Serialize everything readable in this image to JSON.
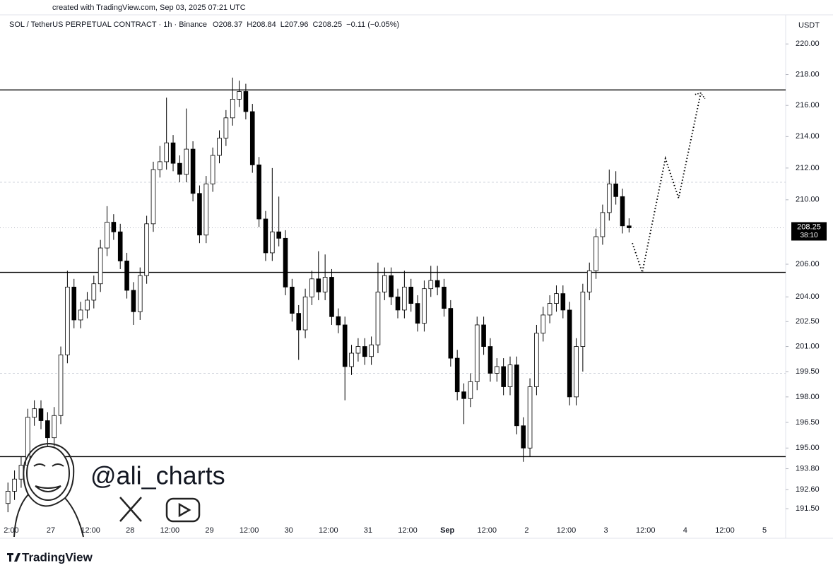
{
  "watermark": "created with TradingView.com, Sep 03, 2025 07:21 UTC",
  "handle": "@ali_charts",
  "brand": "TradingView",
  "chart_data": {
    "type": "candlestick",
    "title": "SOL / TetherUS PERPETUAL CONTRACT · 1h · Binance",
    "legend": [
      "O208.37",
      "H208.84",
      "L207.96",
      "C208.25",
      "−0.11 (−0.05%)"
    ],
    "currency": "USDT",
    "countdown": "38:10",
    "log_scale": true,
    "up_color": "#ffffff",
    "down_color": "#000000",
    "outline_color": "#000000",
    "x": [
      -1,
      1,
      3,
      5,
      7,
      9,
      11,
      13,
      15,
      17,
      19,
      21,
      23,
      25,
      27,
      29,
      31,
      33,
      35,
      37,
      39,
      41,
      43,
      45,
      47,
      49,
      51,
      53,
      55,
      57,
      59,
      61,
      63,
      65,
      67,
      69,
      71,
      73,
      75,
      77,
      79,
      81,
      83,
      85,
      87,
      89,
      91,
      93,
      95,
      97,
      99,
      101,
      103,
      105,
      107,
      109,
      111,
      113,
      115,
      117,
      119,
      121,
      123,
      125,
      127,
      129,
      131,
      133,
      135,
      137,
      139,
      141,
      143,
      145,
      147,
      149,
      151,
      153,
      155,
      157,
      159,
      161,
      163,
      165,
      167,
      169,
      171,
      173,
      175,
      177,
      179,
      181,
      183,
      185,
      187
    ],
    "open": [
      191.8,
      192.5,
      193.2,
      194.0,
      196.8,
      197.3,
      196.6,
      195.6,
      196.9,
      200.5,
      204.6,
      202.6,
      203.2,
      203.8,
      204.8,
      207.0,
      208.6,
      208.0,
      206.2,
      204.4,
      203.1,
      205.3,
      208.5,
      211.9,
      212.4,
      213.6,
      212.3,
      211.6,
      213.2,
      210.4,
      207.8,
      211.0,
      212.8,
      213.9,
      215.2,
      216.4,
      216.9,
      215.6,
      212.2,
      208.8,
      206.7,
      208.0,
      207.6,
      204.6,
      203.0,
      202.0,
      204.0,
      205.1,
      204.3,
      205.2,
      202.8,
      202.3,
      199.8,
      200.6,
      201.0,
      200.4,
      201.1,
      204.3,
      205.3,
      204.0,
      203.2,
      204.6,
      203.6,
      202.4,
      204.5,
      205.0,
      204.6,
      203.3,
      200.3,
      198.3,
      197.9,
      198.9,
      202.3,
      201.0,
      199.4,
      199.8,
      198.6,
      199.9,
      196.3,
      195.0,
      198.6,
      201.8,
      202.9,
      203.6,
      204.2,
      203.2,
      198.0,
      201.0,
      204.3,
      205.6,
      207.7,
      209.2,
      211.0,
      210.2,
      208.37
    ],
    "high": [
      193.0,
      193.7,
      194.5,
      197.3,
      197.8,
      197.8,
      197.1,
      197.4,
      201.0,
      205.6,
      205.1,
      203.7,
      204.3,
      205.3,
      207.5,
      209.6,
      209.1,
      208.5,
      206.7,
      204.9,
      205.8,
      209.0,
      212.4,
      213.4,
      216.5,
      214.1,
      212.8,
      215.8,
      213.7,
      210.9,
      211.5,
      213.3,
      214.4,
      215.7,
      217.8,
      217.6,
      217.4,
      216.1,
      212.7,
      209.3,
      212.0,
      210.2,
      208.1,
      205.1,
      203.5,
      204.5,
      205.6,
      206.8,
      206.6,
      205.7,
      203.3,
      202.8,
      201.1,
      201.5,
      201.5,
      201.6,
      206.1,
      205.8,
      205.8,
      204.5,
      205.6,
      205.1,
      204.1,
      205.0,
      205.9,
      205.9,
      205.1,
      203.8,
      200.8,
      198.8,
      199.4,
      202.8,
      202.8,
      201.5,
      200.3,
      200.3,
      200.4,
      200.4,
      196.8,
      199.1,
      202.3,
      203.4,
      204.1,
      204.7,
      204.7,
      203.7,
      201.5,
      204.8,
      206.1,
      208.2,
      209.7,
      211.9,
      211.8,
      210.7,
      208.84
    ],
    "low": [
      191.3,
      192.0,
      192.7,
      193.5,
      196.3,
      196.1,
      195.1,
      195.1,
      196.4,
      200.0,
      202.1,
      202.1,
      202.7,
      203.3,
      204.3,
      206.5,
      207.5,
      205.7,
      203.9,
      202.3,
      202.6,
      204.8,
      208.0,
      211.4,
      211.9,
      211.8,
      211.1,
      211.1,
      209.9,
      207.3,
      207.3,
      210.5,
      212.3,
      213.4,
      214.7,
      215.9,
      215.1,
      211.7,
      208.3,
      206.2,
      206.2,
      207.1,
      204.1,
      202.5,
      200.2,
      201.5,
      203.5,
      203.8,
      203.8,
      202.3,
      201.8,
      197.8,
      199.3,
      200.1,
      199.9,
      199.9,
      200.6,
      203.8,
      203.5,
      202.7,
      202.7,
      203.1,
      201.9,
      201.9,
      204.0,
      204.1,
      202.8,
      199.8,
      197.8,
      196.4,
      197.4,
      198.4,
      200.5,
      198.9,
      198.9,
      198.1,
      198.1,
      195.8,
      194.2,
      194.5,
      198.1,
      201.3,
      202.4,
      203.1,
      202.7,
      197.5,
      197.5,
      199.5,
      203.8,
      205.1,
      207.2,
      208.7,
      209.7,
      207.9,
      207.96
    ],
    "close": [
      192.5,
      193.2,
      194.0,
      196.8,
      197.3,
      196.6,
      195.6,
      196.9,
      200.5,
      204.6,
      202.6,
      203.2,
      203.8,
      204.8,
      207.0,
      208.6,
      208.0,
      206.2,
      204.4,
      203.1,
      205.3,
      208.5,
      211.9,
      212.4,
      213.6,
      212.3,
      211.6,
      213.2,
      210.4,
      207.8,
      211.0,
      212.8,
      213.9,
      215.2,
      216.4,
      216.9,
      215.6,
      212.2,
      208.8,
      206.7,
      208.0,
      207.6,
      204.6,
      203.0,
      202.0,
      204.0,
      205.1,
      204.3,
      205.2,
      202.8,
      202.3,
      199.8,
      200.6,
      201.0,
      200.4,
      201.1,
      204.3,
      205.3,
      204.0,
      203.2,
      204.6,
      203.6,
      202.4,
      204.5,
      205.0,
      204.6,
      203.3,
      200.3,
      198.3,
      197.9,
      198.9,
      202.3,
      201.0,
      199.4,
      199.8,
      198.6,
      199.9,
      196.3,
      195.0,
      198.6,
      201.8,
      202.9,
      203.6,
      204.2,
      203.2,
      198.0,
      201.0,
      204.3,
      205.6,
      207.7,
      209.2,
      211.0,
      210.2,
      208.37,
      208.25
    ],
    "levels": [
      217,
      205.5,
      194.5
    ],
    "guides": [
      211.1,
      199.4
    ],
    "projection": {
      "x": [
        188,
        191,
        198,
        202,
        208.7
      ],
      "values": [
        207.3,
        205.5,
        212.6,
        210.1,
        216.8
      ]
    },
    "xlim": [
      -3.4,
      234.4
    ],
    "xticks": [
      {
        "value": 0,
        "label": "2:00"
      },
      {
        "value": 12,
        "label": "27"
      },
      {
        "value": 24,
        "label": "12:00"
      },
      {
        "value": 36,
        "label": "28"
      },
      {
        "value": 48,
        "label": "12:00"
      },
      {
        "value": 60,
        "label": "29"
      },
      {
        "value": 72,
        "label": "12:00"
      },
      {
        "value": 84,
        "label": "30"
      },
      {
        "value": 96,
        "label": "12:00"
      },
      {
        "value": 108,
        "label": "31"
      },
      {
        "value": 120,
        "label": "12:00"
      },
      {
        "value": 132,
        "label": "Sep"
      },
      {
        "value": 144,
        "label": "12:00"
      },
      {
        "value": 156,
        "label": "2"
      },
      {
        "value": 168,
        "label": "12:00"
      },
      {
        "value": 180,
        "label": "3"
      },
      {
        "value": 192,
        "label": "12:00"
      },
      {
        "value": 204,
        "label": "4"
      },
      {
        "value": 216,
        "label": "12:00"
      },
      {
        "value": 228,
        "label": "5"
      }
    ],
    "ylim": [
      190.7,
      220.8
    ],
    "yticks": [
      {
        "value": 220,
        "label": "220.00"
      },
      {
        "value": 218,
        "label": "218.00"
      },
      {
        "value": 216,
        "label": "216.00"
      },
      {
        "value": 214,
        "label": "214.00"
      },
      {
        "value": 212,
        "label": "212.00"
      },
      {
        "value": 210,
        "label": "210.00"
      },
      {
        "value": 206,
        "label": "206.00"
      },
      {
        "value": 204,
        "label": "204.00"
      },
      {
        "value": 202.5,
        "label": "202.50"
      },
      {
        "value": 201,
        "label": "201.00"
      },
      {
        "value": 199.5,
        "label": "199.50"
      },
      {
        "value": 198,
        "label": "198.00"
      },
      {
        "value": 196.5,
        "label": "196.50"
      },
      {
        "value": 195,
        "label": "195.00"
      },
      {
        "value": 193.8,
        "label": "193.80"
      },
      {
        "value": 192.6,
        "label": "192.60"
      },
      {
        "value": 191.5,
        "label": "191.50"
      }
    ]
  }
}
